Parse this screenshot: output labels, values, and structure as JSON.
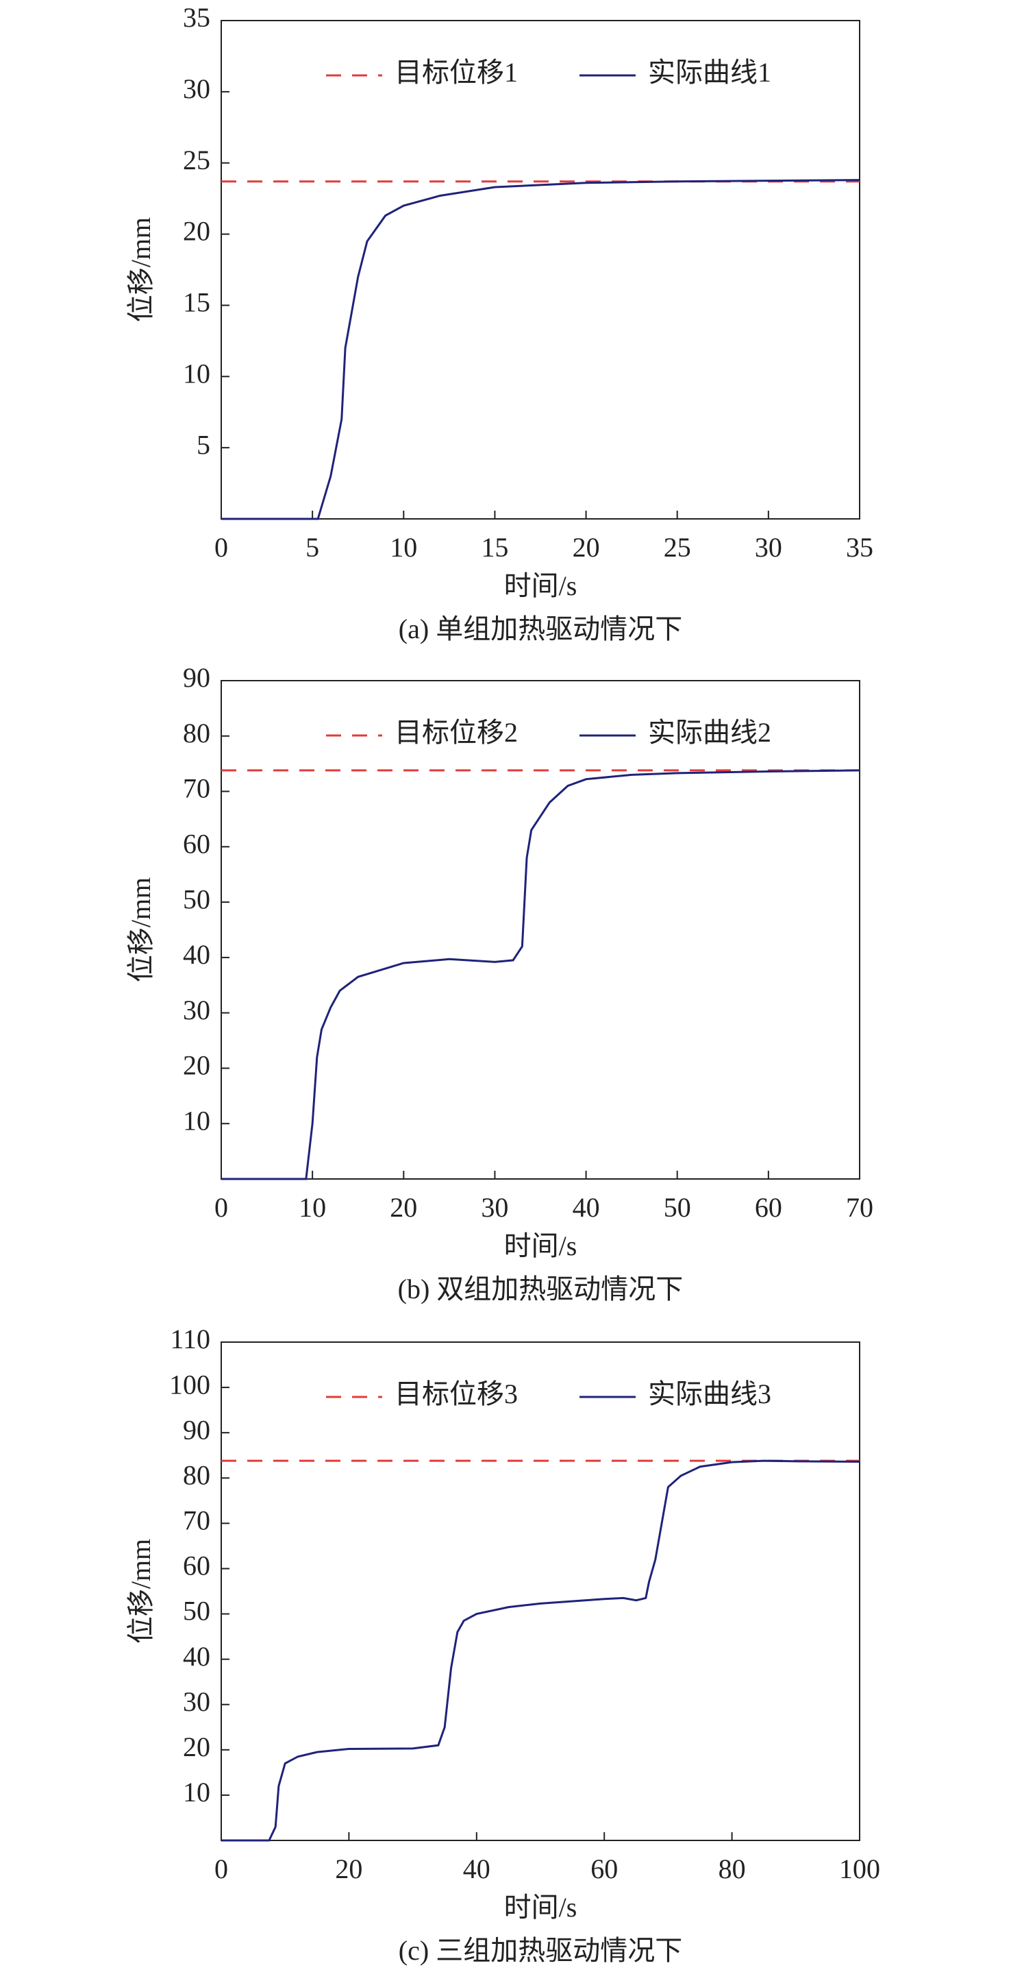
{
  "chart_data": [
    {
      "type": "line",
      "caption": "(a) 单组加热驱动情况下",
      "x_label": "时间/s",
      "y_label": "位移/mm",
      "xlim": [
        0,
        35
      ],
      "ylim": [
        0,
        35
      ],
      "xticks": [
        0,
        5,
        10,
        15,
        20,
        25,
        30,
        35
      ],
      "yticks": [
        5,
        10,
        15,
        20,
        25,
        30,
        35
      ],
      "series": [
        {
          "name": "目标位移1",
          "color": "#e03c3c",
          "linestyle": "dashed",
          "x": [
            0,
            35
          ],
          "values": [
            23.7,
            23.7
          ]
        },
        {
          "name": "实际曲线1",
          "color": "#1f237a",
          "linestyle": "solid",
          "x": [
            0,
            5.3,
            6,
            6.6,
            6.8,
            7.5,
            8,
            9,
            10,
            12,
            15,
            20,
            25,
            35
          ],
          "values": [
            0,
            0,
            3,
            7,
            12,
            17,
            19.5,
            21.3,
            22,
            22.7,
            23.3,
            23.6,
            23.7,
            23.8
          ]
        }
      ]
    },
    {
      "type": "line",
      "caption": "(b) 双组加热驱动情况下",
      "x_label": "时间/s",
      "y_label": "位移/mm",
      "xlim": [
        0,
        70
      ],
      "ylim": [
        0,
        90
      ],
      "xticks": [
        0,
        10,
        20,
        30,
        40,
        50,
        60,
        70
      ],
      "yticks": [
        10,
        20,
        30,
        40,
        50,
        60,
        70,
        80,
        90
      ],
      "series": [
        {
          "name": "目标位移2",
          "color": "#e03c3c",
          "linestyle": "dashed",
          "x": [
            0,
            70
          ],
          "values": [
            73.8,
            73.8
          ]
        },
        {
          "name": "实际曲线2",
          "color": "#1f237a",
          "linestyle": "solid",
          "x": [
            0,
            9.3,
            10,
            10.5,
            11,
            12,
            13,
            15,
            20,
            25,
            30,
            32,
            33,
            33.5,
            34,
            36,
            38,
            40,
            45,
            50,
            60,
            70
          ],
          "values": [
            0,
            0,
            10,
            22,
            27,
            31,
            34,
            36.5,
            39,
            39.7,
            39.2,
            39.5,
            42,
            58,
            63,
            68,
            71,
            72.2,
            73,
            73.3,
            73.6,
            73.8
          ]
        }
      ]
    },
    {
      "type": "line",
      "caption": "(c) 三组加热驱动情况下",
      "x_label": "时间/s",
      "y_label": "位移/mm",
      "xlim": [
        0,
        100
      ],
      "ylim": [
        0,
        110
      ],
      "xticks": [
        0,
        20,
        40,
        60,
        80,
        100
      ],
      "yticks": [
        10,
        20,
        30,
        40,
        50,
        60,
        70,
        80,
        90,
        100,
        110
      ],
      "series": [
        {
          "name": "目标位移3",
          "color": "#e03c3c",
          "linestyle": "dashed",
          "x": [
            0,
            100
          ],
          "values": [
            83.8,
            83.8
          ]
        },
        {
          "name": "实际曲线3",
          "color": "#1f237a",
          "linestyle": "solid",
          "x": [
            0,
            7.5,
            8.5,
            9,
            10,
            12,
            15,
            20,
            30,
            34,
            35,
            36,
            37,
            38,
            40,
            45,
            50,
            60,
            63,
            65,
            66.5,
            67,
            68,
            69,
            70,
            72,
            75,
            80,
            85,
            90,
            100
          ],
          "values": [
            0,
            0,
            3,
            12,
            17,
            18.5,
            19.5,
            20.2,
            20.3,
            21,
            25,
            38,
            46,
            48.5,
            50,
            51.5,
            52.3,
            53.3,
            53.5,
            53,
            53.5,
            57,
            62,
            70,
            78,
            80.5,
            82.5,
            83.5,
            83.8,
            83.7,
            83.6
          ]
        }
      ]
    }
  ]
}
